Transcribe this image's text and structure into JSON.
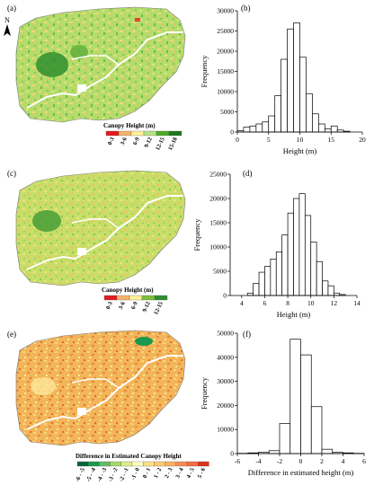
{
  "figure": {
    "panel_labels": [
      "(a)",
      "(b)",
      "(c)",
      "(d)",
      "(e)",
      "(f)"
    ],
    "north_label": "N",
    "colors": {
      "map_green_dark": "#2f8f2f",
      "map_green": "#7cc24a",
      "map_yellow": "#e6e27a",
      "map_orange": "#f0b24a",
      "map_red": "#e84030",
      "map_white_river": "#ffffff",
      "bar_fill": "#ffffff",
      "bar_stroke": "#000000"
    }
  },
  "legends": {
    "a": {
      "title": "Canopy Height (m)",
      "items": [
        "0-3",
        "3-6",
        "6-9",
        "9-12",
        "12-15",
        "15-18"
      ],
      "colors": [
        "#e31a1c",
        "#f7b26a",
        "#fff199",
        "#b8e186",
        "#4dac26",
        "#1b7a1b"
      ]
    },
    "c": {
      "title": "Canopy Height (m)",
      "items": [
        "0-3",
        "3-6",
        "6-9",
        "9-12",
        "12-15"
      ],
      "colors": [
        "#e31a1c",
        "#f7b26a",
        "#fff199",
        "#7fbf3f",
        "#2f8f2f"
      ]
    },
    "e": {
      "title": "Difference in Estimated Canopy Height",
      "items": [
        "-6 - -5",
        "-5 - -4",
        "-4 - -3",
        "-3 - -2",
        "-2 - -1",
        "-1 - 0",
        "0 - 1",
        "1 - 2",
        "2 - 3",
        "3 - 4",
        "4 - 5",
        "5 - 6"
      ],
      "colors": [
        "#006837",
        "#1a9850",
        "#66bd63",
        "#a6d96a",
        "#d9ef8b",
        "#ffffbf",
        "#fee08b",
        "#fdcb6e",
        "#fdae61",
        "#f88d52",
        "#f46d43",
        "#e03020"
      ]
    }
  },
  "chart_data": [
    {
      "panel": "(b)",
      "type": "bar",
      "xlabel": "Height (m)",
      "ylabel": "Frequency",
      "xlim": [
        0,
        20
      ],
      "ylim": [
        0,
        30000
      ],
      "xticks": [
        0,
        5,
        10,
        15,
        20
      ],
      "yticks": [
        0,
        5000,
        10000,
        15000,
        20000,
        25000,
        30000
      ],
      "bin_width": 1,
      "bin_starts": [
        0,
        1,
        2,
        3,
        4,
        5,
        6,
        7,
        8,
        9,
        10,
        11,
        12,
        13,
        14,
        15,
        16,
        17
      ],
      "values": [
        300,
        1200,
        1500,
        2000,
        2500,
        4000,
        9000,
        18000,
        25500,
        27000,
        18500,
        9500,
        4500,
        2000,
        800,
        1500,
        500,
        200
      ]
    },
    {
      "panel": "(d)",
      "type": "bar",
      "xlabel": "Height (m)",
      "ylabel": "Frequency",
      "xlim": [
        3,
        14
      ],
      "ylim": [
        0,
        25000
      ],
      "xticks": [
        4,
        6,
        8,
        10,
        12,
        14
      ],
      "yticks": [
        0,
        5000,
        10000,
        15000,
        20000,
        25000
      ],
      "bin_width": 0.5,
      "bin_starts": [
        4.5,
        5.0,
        5.5,
        6.0,
        6.5,
        7.0,
        7.5,
        8.0,
        8.5,
        9.0,
        9.5,
        10.0,
        10.5,
        11.0,
        11.5,
        12.0,
        12.5
      ],
      "values": [
        500,
        2500,
        4800,
        6000,
        7500,
        9000,
        12500,
        17000,
        20000,
        21000,
        16500,
        11000,
        7000,
        3000,
        2000,
        500,
        200
      ]
    },
    {
      "panel": "(f)",
      "type": "bar",
      "xlabel": "Difference in estimated height (m)",
      "ylabel": "Frequency",
      "xlim": [
        -6,
        6
      ],
      "ylim": [
        0,
        50000
      ],
      "xticks": [
        -6,
        -4,
        -2,
        0,
        2,
        4,
        6
      ],
      "yticks": [
        0,
        10000,
        20000,
        30000,
        40000,
        50000
      ],
      "bin_width": 1,
      "bin_starts": [
        -6,
        -5,
        -4,
        -3,
        -2,
        -1,
        0,
        1,
        2,
        3,
        4,
        5
      ],
      "values": [
        100,
        300,
        600,
        1200,
        12500,
        47500,
        41000,
        19500,
        1800,
        500,
        300,
        100
      ]
    }
  ]
}
